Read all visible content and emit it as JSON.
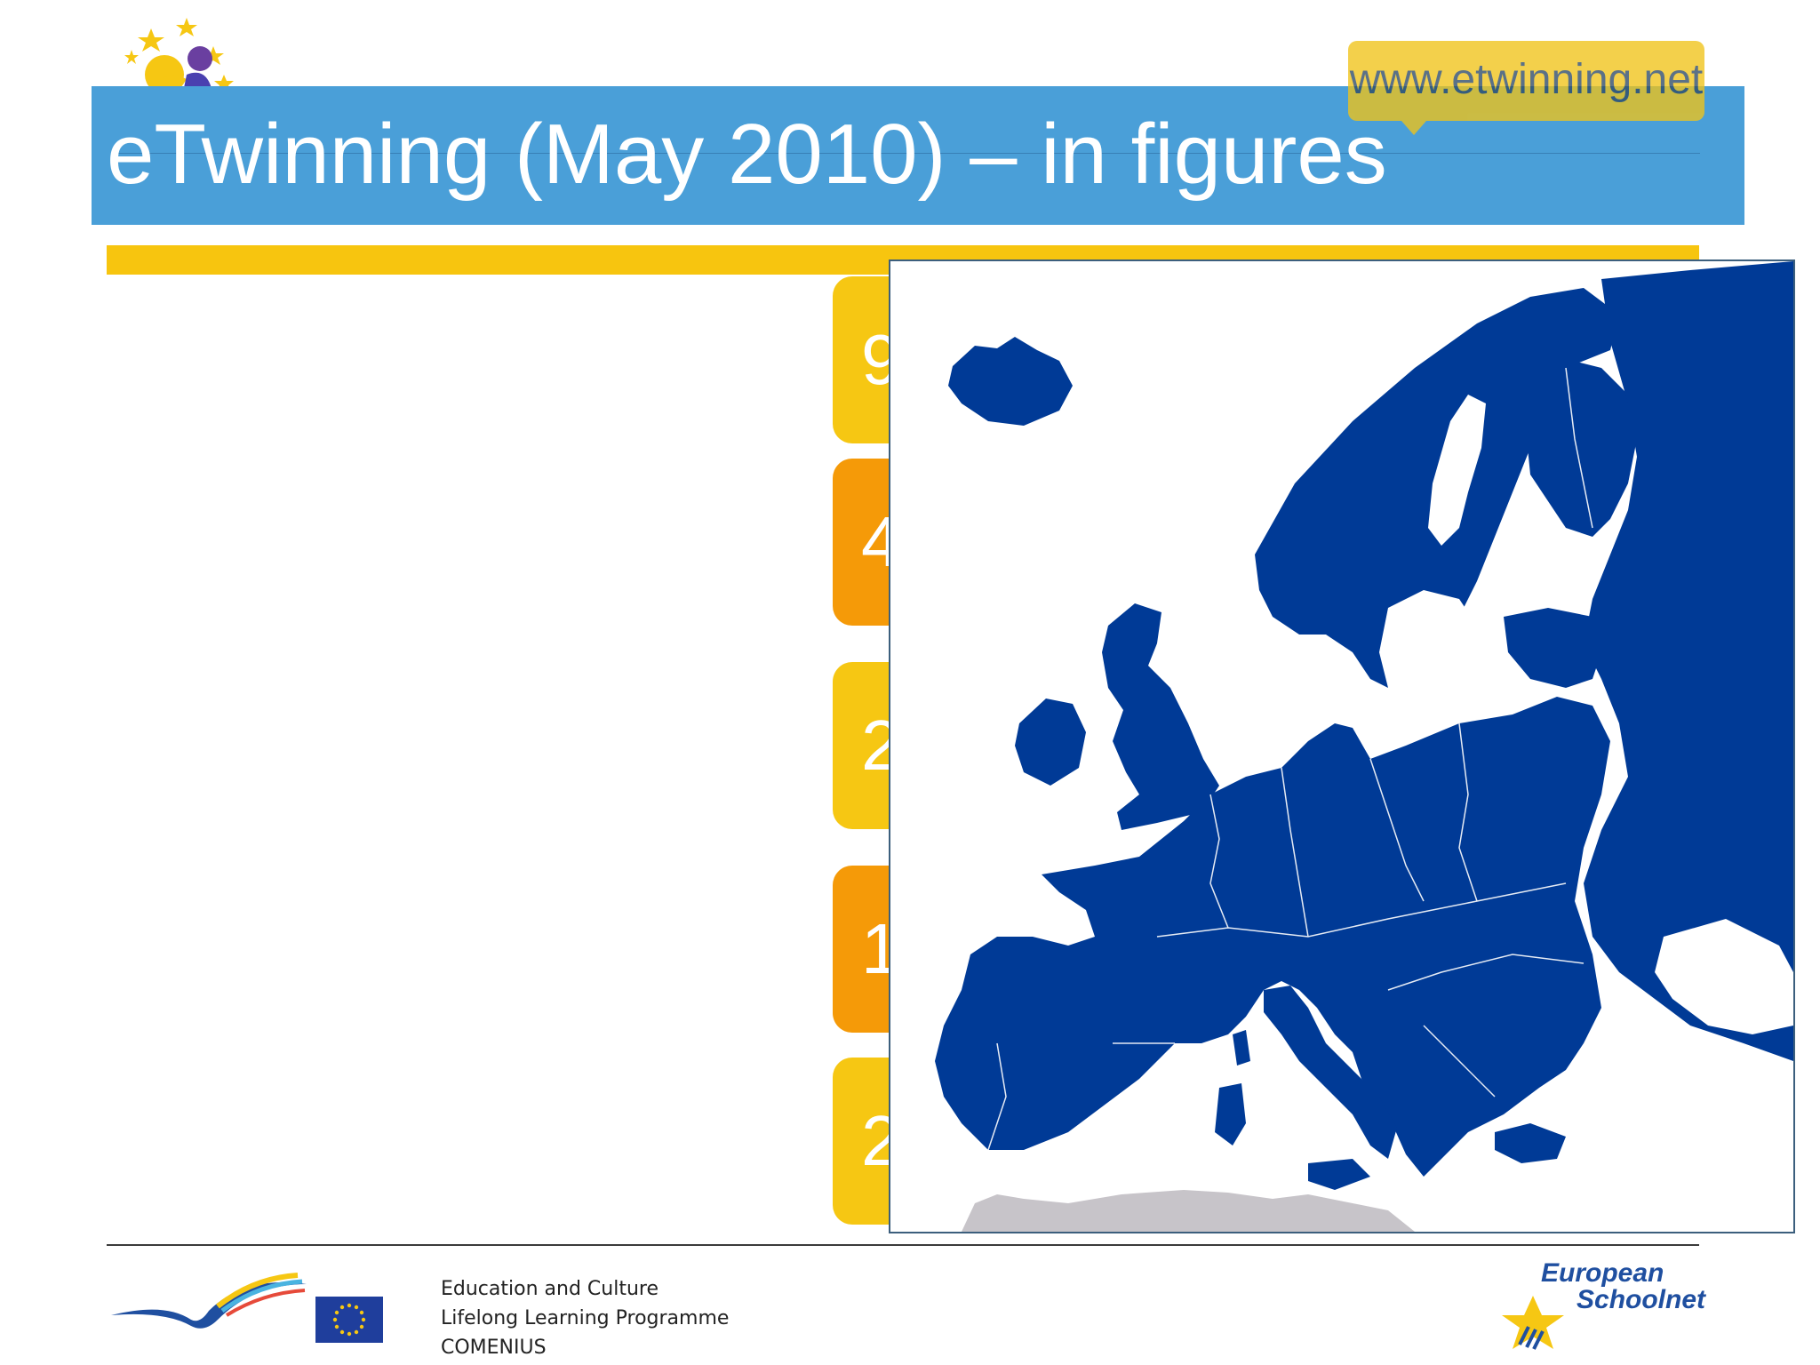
{
  "header": {
    "logo_text": "eTwinning",
    "title": "eTwinning (May 2010) – in figures",
    "url": "www.etwinning.net"
  },
  "stats": [
    {
      "text": "9",
      "color": "#f6c713"
    },
    {
      "text": "4",
      "color": "#f59a08"
    },
    {
      "text": "2",
      "color": "#f6c713"
    },
    {
      "text": "1",
      "color": "#f59a08"
    },
    {
      "text": "2",
      "color": "#f6c713"
    }
  ],
  "colors": {
    "title_band": "#4a9fd8",
    "accent_yellow": "#f7c50f",
    "accent_orange": "#f59a08",
    "map_land": "#003a96"
  },
  "footer": {
    "lines": [
      "Education and Culture",
      "Lifelong Learning Programme",
      "COMENIUS"
    ],
    "partner_line1": "European",
    "partner_line2": "Schoolnet"
  }
}
